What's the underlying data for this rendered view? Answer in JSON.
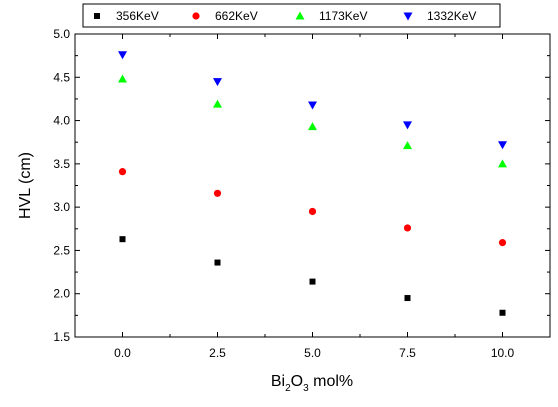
{
  "chart_data": {
    "type": "scatter",
    "xlabel": {
      "main": "Bi",
      "sub1": "2",
      "mid": "O",
      "sub2": "3",
      "tail": " mol%"
    },
    "ylabel": "HVL (cm)",
    "xlim": [
      -1.25,
      11.25
    ],
    "ylim": [
      1.5,
      5.0
    ],
    "x_ticks": [
      "0.0",
      "2.5",
      "5.0",
      "7.5",
      "10.0"
    ],
    "y_ticks": [
      "1.5",
      "2.0",
      "2.5",
      "3.0",
      "3.5",
      "4.0",
      "4.5",
      "5.0"
    ],
    "grid": false,
    "legend_position": "top",
    "x": [
      0,
      2.5,
      5,
      7.5,
      10
    ],
    "series": [
      {
        "name": "356KeV",
        "marker": "square",
        "color": "#000000",
        "values": [
          2.63,
          2.36,
          2.14,
          1.95,
          1.78
        ]
      },
      {
        "name": "662KeV",
        "marker": "circle",
        "color": "#ff0000",
        "values": [
          3.41,
          3.16,
          2.95,
          2.76,
          2.59
        ]
      },
      {
        "name": "1173KeV",
        "marker": "triangle-up",
        "color": "#00ff00",
        "values": [
          4.48,
          4.19,
          3.93,
          3.71,
          3.5
        ]
      },
      {
        "name": "1332KeV",
        "marker": "triangle-down",
        "color": "#0000ff",
        "values": [
          4.76,
          4.45,
          4.18,
          3.95,
          3.72
        ]
      }
    ]
  }
}
